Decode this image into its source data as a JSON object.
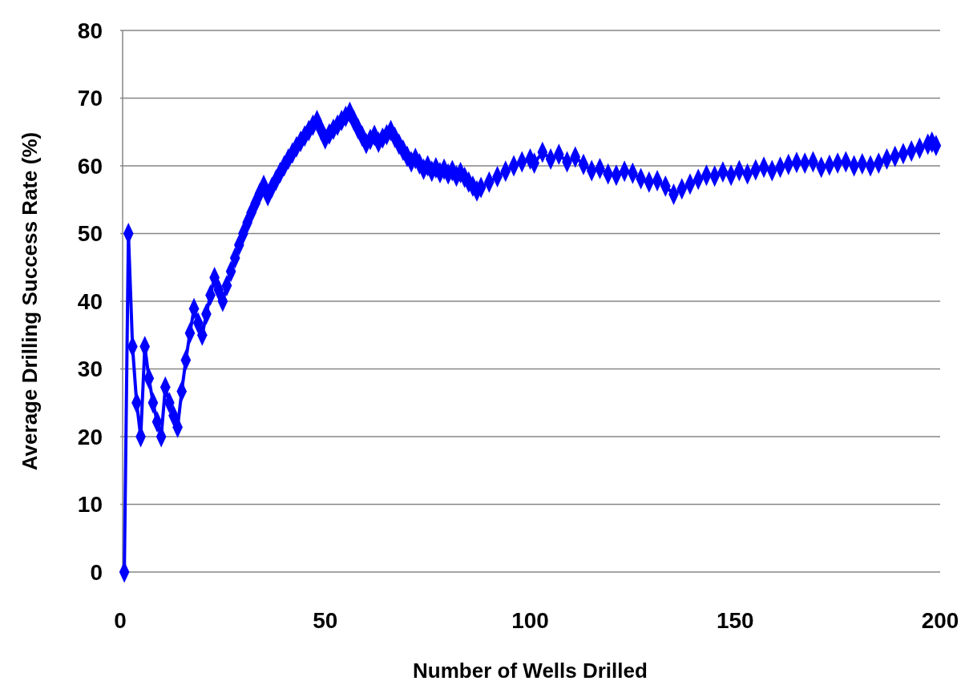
{
  "chart_data": {
    "type": "line",
    "xlabel": "Number of Wells Drilled",
    "ylabel": "Average Drilling Success Rate (%)",
    "xlim": [
      0,
      200
    ],
    "xticks": [
      0,
      50,
      100,
      150,
      200
    ],
    "ylim": [
      0,
      80
    ],
    "yticks": [
      0,
      10,
      20,
      30,
      40,
      50,
      60,
      70,
      80
    ],
    "grid": "y",
    "marker": "diamond",
    "line_style": "solid",
    "x": [
      1,
      2,
      3,
      4,
      5,
      6,
      7,
      8,
      9,
      10,
      11,
      12,
      13,
      14,
      15,
      16,
      17,
      18,
      19,
      20,
      21,
      22,
      23,
      24,
      25,
      26,
      27,
      28,
      29,
      30,
      31,
      32,
      33,
      34,
      35,
      36,
      37,
      38,
      39,
      40,
      41,
      42,
      43,
      44,
      45,
      46,
      47,
      48,
      49,
      50,
      51,
      52,
      53,
      54,
      55,
      56,
      57,
      58,
      59,
      60,
      61,
      62,
      63,
      64,
      65,
      66,
      67,
      68,
      69,
      70,
      71,
      72,
      73,
      74,
      75,
      76,
      77,
      78,
      79,
      80,
      81,
      82,
      83,
      84,
      85,
      86,
      87,
      88,
      90,
      92,
      94,
      96,
      98,
      100,
      101,
      103,
      105,
      107,
      109,
      111,
      113,
      115,
      117,
      119,
      121,
      123,
      125,
      127,
      129,
      131,
      133,
      135,
      137,
      139,
      141,
      143,
      145,
      147,
      149,
      151,
      153,
      155,
      157,
      159,
      161,
      163,
      165,
      167,
      169,
      171,
      173,
      175,
      177,
      179,
      181,
      183,
      185,
      187,
      189,
      191,
      193,
      195,
      197,
      198,
      199
    ],
    "series": [
      {
        "color": "#0000ff",
        "values": [
          0,
          50,
          33.3,
          25,
          20,
          33.3,
          28.6,
          25,
          22.2,
          20,
          27.3,
          25,
          23.1,
          21.4,
          26.7,
          31.3,
          35.3,
          38.9,
          36.8,
          35,
          38.1,
          40.9,
          43.5,
          41.7,
          40,
          42.3,
          44.4,
          46.4,
          48.3,
          50,
          51.6,
          53.1,
          54.5,
          55.9,
          57.1,
          55.6,
          56.8,
          57.9,
          59,
          60,
          61,
          61.9,
          62.8,
          63.6,
          64.4,
          65.2,
          66,
          66.7,
          65.3,
          64,
          64.7,
          65.4,
          66,
          66.7,
          67.3,
          67.9,
          66.7,
          65.5,
          64.4,
          63.3,
          63.9,
          64.5,
          63.5,
          64.1,
          64.6,
          65.2,
          64.2,
          63.2,
          62.3,
          61.4,
          60.6,
          61.1,
          60.3,
          59.5,
          60,
          59.2,
          59.7,
          59,
          59.5,
          58.8,
          59.3,
          58.5,
          59,
          58.3,
          57.6,
          57,
          56.3,
          56.8,
          57.6,
          58.4,
          59.2,
          60,
          60.6,
          61,
          60.4,
          62,
          61,
          61.7,
          60.6,
          61.3,
          60.2,
          59.3,
          59.6,
          58.8,
          58.6,
          59.2,
          58.9,
          58.1,
          57.6,
          57.8,
          57,
          55.8,
          56.6,
          57.3,
          58,
          58.6,
          58.5,
          59.1,
          58.6,
          59.3,
          58.8,
          59.4,
          59.8,
          59.3,
          59.8,
          60.2,
          60.5,
          60.4,
          60.6,
          59.8,
          60.1,
          60.4,
          60.6,
          60,
          60.3,
          60,
          60.4,
          61,
          61.4,
          61.8,
          62.2,
          62.6,
          63.2,
          63.5,
          63
        ]
      }
    ]
  }
}
